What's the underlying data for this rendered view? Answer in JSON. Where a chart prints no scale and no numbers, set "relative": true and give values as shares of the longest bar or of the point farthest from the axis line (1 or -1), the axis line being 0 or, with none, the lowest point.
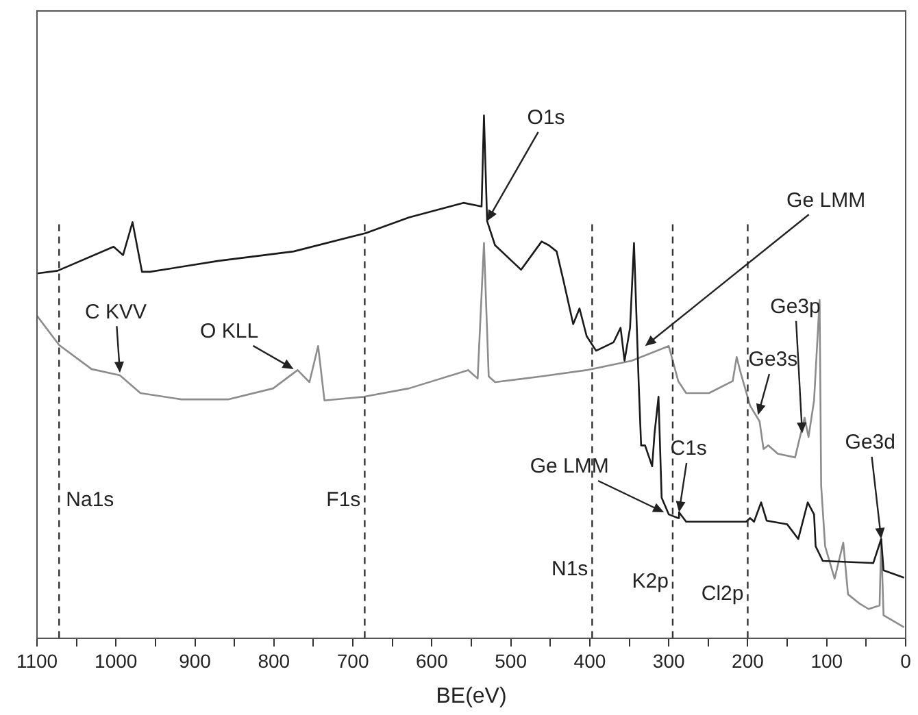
{
  "chart_data": {
    "type": "line",
    "xlabel": "BE(eV)",
    "relative": true,
    "grid": false,
    "legend": false,
    "marker": "none",
    "xlim": [
      1100,
      0
    ],
    "xticks": [
      1100,
      {
        "value": 1050,
        "label": null
      },
      1000,
      {
        "value": 950,
        "label": null
      },
      900,
      {
        "value": 850,
        "label": null
      },
      800,
      {
        "value": 750,
        "label": null
      },
      700,
      {
        "value": 650,
        "label": null
      },
      600,
      {
        "value": 550,
        "label": null
      },
      500,
      {
        "value": 450,
        "label": null
      },
      400,
      {
        "value": 350,
        "label": null
      },
      300,
      {
        "value": 250,
        "label": null
      },
      200,
      {
        "value": 150,
        "label": null
      },
      100,
      {
        "value": 50,
        "label": null
      },
      0
    ],
    "series": [
      {
        "color": "#1a1a1a",
        "x": [
          1100,
          1074,
          1003,
          991,
          979,
          967,
          957,
          870,
          775,
          684,
          629,
          560,
          537,
          534,
          530,
          520,
          487,
          461,
          452,
          442,
          433,
          421,
          413,
          404,
          392,
          370,
          361,
          356,
          349,
          344,
          338,
          335,
          330,
          321,
          318,
          313,
          309,
          300,
          288,
          287,
          278,
          202,
          197,
          192,
          183,
          176,
          150,
          136,
          124,
          116,
          114,
          105,
          41,
          36,
          31,
          28,
          2
        ],
        "values": [
          0.698,
          0.703,
          0.749,
          0.733,
          0.796,
          0.701,
          0.701,
          0.722,
          0.74,
          0.775,
          0.805,
          0.833,
          0.826,
          1.0,
          0.798,
          0.752,
          0.705,
          0.759,
          0.752,
          0.74,
          0.682,
          0.601,
          0.631,
          0.578,
          0.55,
          0.566,
          0.594,
          0.531,
          0.594,
          0.756,
          0.485,
          0.369,
          0.369,
          0.329,
          0.392,
          0.462,
          0.269,
          0.237,
          0.23,
          0.241,
          0.223,
          0.223,
          0.23,
          0.223,
          0.26,
          0.225,
          0.218,
          0.19,
          0.26,
          0.237,
          0.176,
          0.148,
          0.144,
          0.167,
          0.19,
          0.13,
          0.116
        ]
      },
      {
        "color": "#8c8c8c",
        "x": [
          1100,
          1072,
          1031,
          995,
          969,
          917,
          858,
          801,
          770,
          755,
          744,
          736,
          686,
          629,
          554,
          542,
          534,
          528,
          520,
          461,
          404,
          347,
          300,
          288,
          278,
          249,
          219,
          214,
          209,
          197,
          185,
          180,
          174,
          162,
          140,
          128,
          123,
          116,
          109,
          107,
          102,
          90,
          79,
          73,
          59,
          47,
          33,
          31,
          28,
          2
        ],
        "values": [
          0.617,
          0.561,
          0.515,
          0.503,
          0.469,
          0.457,
          0.457,
          0.478,
          0.513,
          0.49,
          0.559,
          0.455,
          0.462,
          0.478,
          0.513,
          0.497,
          0.756,
          0.501,
          0.49,
          0.501,
          0.513,
          0.531,
          0.559,
          0.492,
          0.469,
          0.469,
          0.492,
          0.538,
          0.508,
          0.445,
          0.415,
          0.362,
          0.369,
          0.353,
          0.346,
          0.422,
          0.385,
          0.455,
          0.647,
          0.292,
          0.176,
          0.114,
          0.183,
          0.084,
          0.067,
          0.056,
          0.063,
          0.19,
          0.044,
          0.021
        ]
      }
    ],
    "ref_lines": [
      {
        "axis": "x",
        "value": 1072,
        "label": "Na1s",
        "line_style": "dashed"
      },
      {
        "axis": "x",
        "value": 685,
        "label": "F1s",
        "line_style": "dashed"
      },
      {
        "axis": "x",
        "value": 397,
        "label": "N1s",
        "line_style": "dashed"
      },
      {
        "axis": "x",
        "value": 295,
        "label": "K2p",
        "line_style": "dashed"
      },
      {
        "axis": "x",
        "value": 200,
        "label": "Cl2p",
        "line_style": "dashed"
      }
    ],
    "annotations": [
      {
        "text": "C KVV",
        "x": 995,
        "y": 0.508
      },
      {
        "text": "O KLL",
        "x": 775,
        "y": 0.515
      },
      {
        "text": "O1s",
        "x": 530,
        "y": 0.798
      },
      {
        "text": "Ge LMM",
        "x": 330,
        "y": 0.559
      },
      {
        "text": "Ge3s",
        "x": 187,
        "y": 0.427
      },
      {
        "text": "Ge3p",
        "x": 131,
        "y": 0.392
      },
      {
        "text": "C1s",
        "x": 287,
        "y": 0.241
      },
      {
        "text": "Ge LMM",
        "x": 306,
        "y": 0.241
      },
      {
        "text": "Ge3d",
        "x": 31,
        "y": 0.19
      }
    ]
  }
}
